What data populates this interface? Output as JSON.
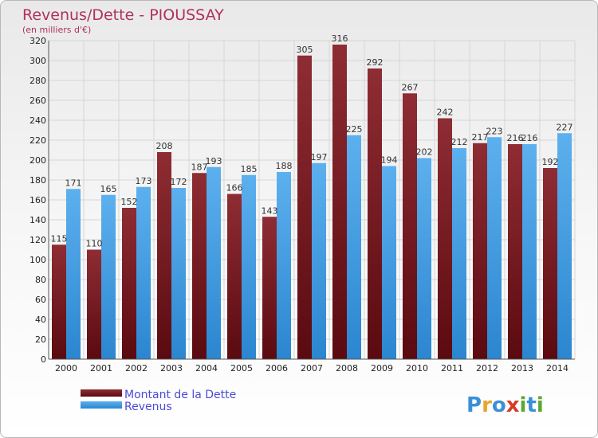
{
  "chart_data": {
    "type": "bar",
    "title": "Revenus/Dette - PIOUSSAY",
    "subtitle": "(en milliers d'€)",
    "categories": [
      "2000",
      "2001",
      "2002",
      "2003",
      "2004",
      "2005",
      "2006",
      "2007",
      "2008",
      "2009",
      "2010",
      "2011",
      "2012",
      "2013",
      "2014"
    ],
    "series": [
      {
        "name": "Montant de la Dette",
        "color": "#7a1e22",
        "values": [
          115,
          110,
          152,
          208,
          187,
          166,
          143,
          305,
          316,
          292,
          267,
          242,
          217,
          216,
          192
        ]
      },
      {
        "name": "Revenus",
        "color": "#3d9be0",
        "values": [
          171,
          165,
          173,
          172,
          193,
          185,
          188,
          197,
          225,
          194,
          202,
          212,
          223,
          216,
          227
        ]
      }
    ],
    "ylim": [
      0,
      320
    ],
    "yticks": [
      0,
      20,
      40,
      60,
      80,
      100,
      120,
      140,
      160,
      180,
      200,
      220,
      240,
      260,
      280,
      300,
      320
    ],
    "grid": true,
    "legend_position": "bottom-left"
  },
  "logo": {
    "letters": [
      "P",
      "r",
      "o",
      "x",
      "i",
      "t",
      "i"
    ],
    "colors": [
      "#3b8fd8",
      "#e8a52a",
      "#3b8fd8",
      "#d83a2a",
      "#5aa832",
      "#3b8fd8",
      "#5aa832"
    ]
  }
}
